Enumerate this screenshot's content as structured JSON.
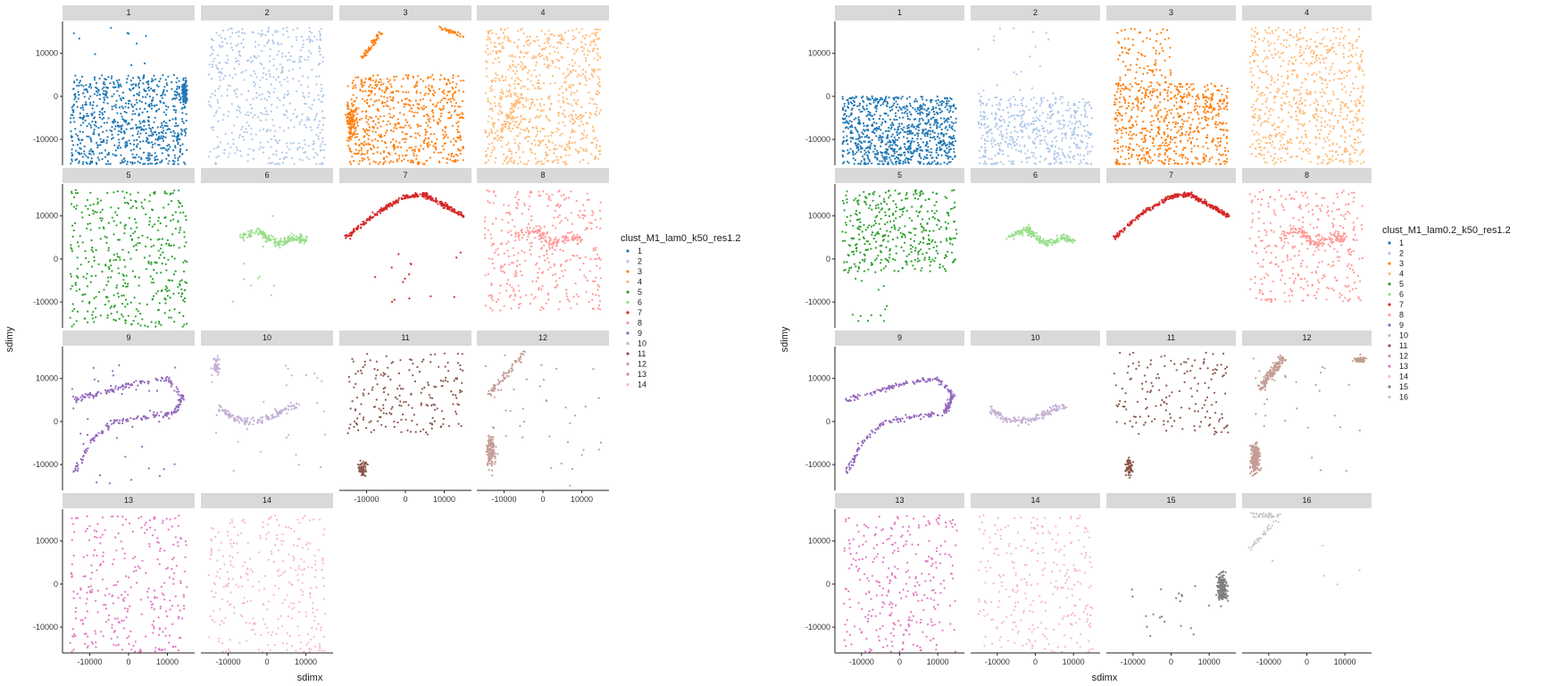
{
  "figures": [
    {
      "xlabel": "sdimx",
      "ylabel": "sdimy",
      "legend_title": "clust_M1_lam0_k50_res1.2",
      "legend_items": [
        "1",
        "2",
        "3",
        "4",
        "5",
        "6",
        "7",
        "8",
        "9",
        "10",
        "11",
        "12",
        "13",
        "14"
      ],
      "panel_labels": [
        "1",
        "2",
        "3",
        "4",
        "5",
        "6",
        "7",
        "8",
        "9",
        "10",
        "11",
        "12",
        "13",
        "14"
      ],
      "y_ticks": [
        "10000",
        "0",
        "-10000"
      ],
      "x_ticks": [
        "-10000",
        "0",
        "10000"
      ]
    },
    {
      "xlabel": "sdimx",
      "ylabel": "sdimy",
      "legend_title": "clust_M1_lam0.2_k50_res1.2",
      "legend_items": [
        "1",
        "2",
        "3",
        "4",
        "5",
        "6",
        "7",
        "8",
        "9",
        "10",
        "11",
        "12",
        "13",
        "14",
        "15",
        "16"
      ],
      "panel_labels": [
        "1",
        "2",
        "3",
        "4",
        "5",
        "6",
        "7",
        "8",
        "9",
        "10",
        "11",
        "12",
        "13",
        "14",
        "15",
        "16"
      ],
      "y_ticks": [
        "10000",
        "0",
        "-10000"
      ],
      "x_ticks": [
        "-10000",
        "0",
        "10000"
      ]
    }
  ],
  "chart_data": [
    {
      "type": "scatter",
      "facet_by": "cluster",
      "xlabel": "sdimx",
      "ylabel": "sdimy",
      "legend_title": "clust_M1_lam0_k50_res1.2",
      "legend_placement": "right",
      "xlim": [
        -17000,
        17000
      ],
      "ylim": [
        -16000,
        17000
      ],
      "x_ticks": [
        -10000,
        0,
        10000
      ],
      "y_ticks": [
        10000,
        0,
        -10000
      ],
      "grid": false,
      "facet_columns": 4,
      "series": [
        {
          "name": "1",
          "color": "#1f77b4"
        },
        {
          "name": "2",
          "color": "#aec7e8"
        },
        {
          "name": "3",
          "color": "#ff7f0e"
        },
        {
          "name": "4",
          "color": "#ffbb78"
        },
        {
          "name": "5",
          "color": "#2ca02c"
        },
        {
          "name": "6",
          "color": "#98df8a"
        },
        {
          "name": "7",
          "color": "#d62728"
        },
        {
          "name": "8",
          "color": "#ff9896"
        },
        {
          "name": "9",
          "color": "#9467bd"
        },
        {
          "name": "10",
          "color": "#c5b0d5"
        },
        {
          "name": "11",
          "color": "#8c564b"
        },
        {
          "name": "12",
          "color": "#c49c94"
        },
        {
          "name": "13",
          "color": "#e377c2"
        },
        {
          "name": "14",
          "color": "#f7b6d2"
        }
      ]
    },
    {
      "type": "scatter",
      "facet_by": "cluster",
      "xlabel": "sdimx",
      "ylabel": "sdimy",
      "legend_title": "clust_M1_lam0.2_k50_res1.2",
      "legend_placement": "right",
      "xlim": [
        -17000,
        17000
      ],
      "ylim": [
        -16000,
        17000
      ],
      "x_ticks": [
        -10000,
        0,
        10000
      ],
      "y_ticks": [
        10000,
        0,
        -10000
      ],
      "grid": false,
      "facet_columns": 4,
      "series": [
        {
          "name": "1",
          "color": "#1f77b4"
        },
        {
          "name": "2",
          "color": "#aec7e8"
        },
        {
          "name": "3",
          "color": "#ff7f0e"
        },
        {
          "name": "4",
          "color": "#ffbb78"
        },
        {
          "name": "5",
          "color": "#2ca02c"
        },
        {
          "name": "6",
          "color": "#98df8a"
        },
        {
          "name": "7",
          "color": "#d62728"
        },
        {
          "name": "8",
          "color": "#ff9896"
        },
        {
          "name": "9",
          "color": "#9467bd"
        },
        {
          "name": "10",
          "color": "#c5b0d5"
        },
        {
          "name": "11",
          "color": "#8c564b"
        },
        {
          "name": "12",
          "color": "#c49c94"
        },
        {
          "name": "13",
          "color": "#e377c2"
        },
        {
          "name": "14",
          "color": "#f7b6d2"
        },
        {
          "name": "15",
          "color": "#7f7f7f"
        },
        {
          "name": "16",
          "color": "#c7c7c7"
        }
      ]
    }
  ]
}
